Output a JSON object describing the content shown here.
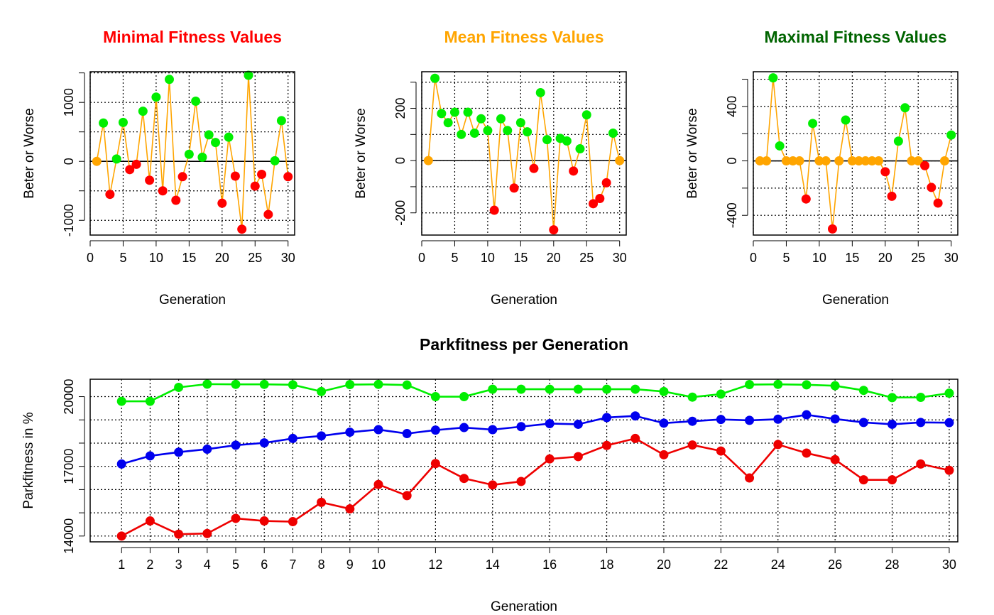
{
  "colors": {
    "better": "#00ee00",
    "worse": "#ff0000",
    "neutral": "#ffa500",
    "line": "#ffa500",
    "max_series": "#00ee00",
    "mean_series": "#0000ee",
    "min_series": "#ee0000",
    "title_min": "#ff0000",
    "title_mean": "#ffa500",
    "title_max": "#006400",
    "title_park": "#000000"
  },
  "chart_data": [
    {
      "id": "min",
      "type": "line",
      "title": "Minimal Fitness Values",
      "xlabel": "Generation",
      "ylabel": "Beter or Worse",
      "xlim": [
        0,
        31
      ],
      "ylim": [
        -1250,
        1520
      ],
      "xticks": [
        0,
        5,
        10,
        15,
        20,
        25,
        30
      ],
      "yticks": [
        -1000,
        0,
        1000
      ],
      "ygrid": [
        -1000,
        -500,
        0,
        500,
        1000,
        1500
      ],
      "x": [
        1,
        2,
        3,
        4,
        5,
        6,
        7,
        8,
        9,
        10,
        11,
        12,
        13,
        14,
        15,
        16,
        17,
        18,
        19,
        20,
        21,
        22,
        23,
        24,
        25,
        26,
        27,
        28,
        29,
        30
      ],
      "values": [
        0,
        650,
        -560,
        40,
        660,
        -140,
        -50,
        850,
        -320,
        1090,
        -500,
        1390,
        -660,
        -260,
        120,
        1020,
        70,
        450,
        320,
        -710,
        410,
        -250,
        -1150,
        1460,
        -420,
        -220,
        -900,
        10,
        690,
        -260
      ]
    },
    {
      "id": "mean",
      "type": "line",
      "title": "Mean Fitness Values",
      "xlabel": "Generation",
      "ylabel": "Beter or Worse",
      "xlim": [
        0,
        31
      ],
      "ylim": [
        -285,
        340
      ],
      "xticks": [
        0,
        5,
        10,
        15,
        20,
        25,
        30
      ],
      "yticks": [
        -200,
        0,
        200
      ],
      "ygrid": [
        -200,
        -100,
        0,
        100,
        200,
        300
      ],
      "x": [
        1,
        2,
        3,
        4,
        5,
        6,
        7,
        8,
        9,
        10,
        11,
        12,
        13,
        14,
        15,
        16,
        17,
        18,
        19,
        20,
        21,
        22,
        23,
        24,
        25,
        26,
        27,
        28,
        29,
        30
      ],
      "values": [
        0,
        315,
        180,
        145,
        185,
        100,
        185,
        105,
        160,
        115,
        -190,
        160,
        115,
        -105,
        145,
        110,
        -30,
        260,
        80,
        -265,
        85,
        75,
        -40,
        45,
        175,
        -165,
        -145,
        -85,
        105,
        0
      ]
    },
    {
      "id": "max",
      "type": "line",
      "title": "Maximal Fitness Values",
      "xlabel": "Generation",
      "ylabel": "Beter or Worse",
      "xlim": [
        0,
        31
      ],
      "ylim": [
        -545,
        655
      ],
      "xticks": [
        0,
        5,
        10,
        15,
        20,
        25,
        30
      ],
      "yticks": [
        -400,
        0,
        400
      ],
      "ygrid": [
        -400,
        -200,
        0,
        200,
        400,
        600
      ],
      "x": [
        1,
        2,
        3,
        4,
        5,
        6,
        7,
        8,
        9,
        10,
        11,
        12,
        13,
        14,
        15,
        16,
        17,
        18,
        19,
        20,
        21,
        22,
        23,
        24,
        25,
        26,
        27,
        28,
        29,
        30
      ],
      "values": [
        0,
        0,
        610,
        110,
        0,
        0,
        0,
        -280,
        275,
        0,
        0,
        -500,
        0,
        300,
        0,
        0,
        0,
        0,
        0,
        -80,
        -260,
        145,
        390,
        0,
        0,
        -35,
        -195,
        -310,
        0,
        190
      ]
    },
    {
      "id": "park",
      "type": "line",
      "title": "Parkfitness per Generation",
      "xlabel": "Generation",
      "ylabel": "Parkfitness in %",
      "xlim": [
        -0.1,
        30.3
      ],
      "ylim": [
        13750,
        20750
      ],
      "xticks": [
        1,
        2,
        3,
        4,
        5,
        6,
        7,
        8,
        9,
        10,
        12,
        14,
        16,
        18,
        20,
        22,
        24,
        26,
        28,
        30
      ],
      "yticks": [
        14000,
        17000,
        20000
      ],
      "ygrid": [
        14000,
        15000,
        16000,
        17000,
        18000,
        19000,
        20000
      ],
      "x": [
        1,
        2,
        3,
        4,
        5,
        6,
        7,
        8,
        9,
        10,
        11,
        12,
        13,
        14,
        15,
        16,
        17,
        18,
        19,
        20,
        21,
        22,
        23,
        24,
        25,
        26,
        27,
        28,
        29,
        30
      ],
      "series": [
        {
          "id": "max",
          "values": [
            19800,
            19800,
            20400,
            20540,
            20530,
            20530,
            20510,
            20220,
            20520,
            20530,
            20500,
            20000,
            20000,
            20320,
            20320,
            20320,
            20320,
            20320,
            20320,
            20220,
            19980,
            20110,
            20520,
            20530,
            20510,
            20470,
            20270,
            19960,
            19970,
            20150
          ]
        },
        {
          "id": "mean",
          "values": [
            17100,
            17450,
            17610,
            17740,
            17910,
            18010,
            18200,
            18310,
            18470,
            18580,
            18410,
            18560,
            18670,
            18580,
            18710,
            18840,
            18810,
            19100,
            19170,
            18860,
            18940,
            19020,
            18980,
            19030,
            19220,
            19040,
            18890,
            18810,
            18890,
            18880
          ]
        },
        {
          "id": "min",
          "values": [
            14000,
            14650,
            14080,
            14110,
            14760,
            14650,
            14620,
            15450,
            15170,
            16220,
            15740,
            17120,
            16480,
            16200,
            16350,
            17320,
            17420,
            17900,
            18200,
            17500,
            17920,
            17660,
            16500,
            17940,
            17570,
            17290,
            16420,
            16420,
            17100,
            16830
          ]
        }
      ]
    }
  ]
}
